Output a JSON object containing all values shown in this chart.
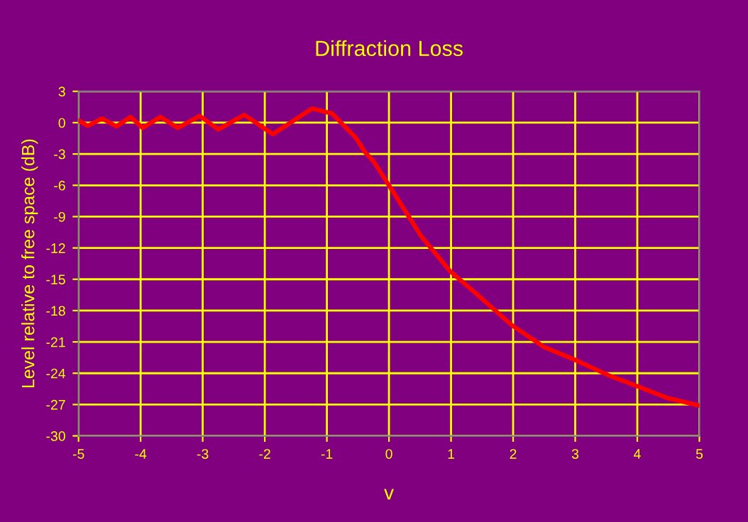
{
  "chart_data": {
    "type": "line",
    "title": "Diffraction Loss",
    "xlabel": "v",
    "ylabel": "Level relative to free space (dB)",
    "series": [
      {
        "color": "#ff0000",
        "x": [
          -5,
          -4.85,
          -4.62,
          -4.39,
          -4.16,
          -3.97,
          -3.68,
          -3.4,
          -3.05,
          -2.75,
          -2.33,
          -1.87,
          -1.24,
          -1,
          -0.92,
          -0.69,
          -0.54,
          -0.39,
          -0.25,
          0,
          0.51,
          0.98,
          1.43,
          1.98,
          2.5,
          2.99,
          3.58,
          3.98,
          4.5,
          5
        ],
        "values": [
          0.2,
          -0.3,
          0.4,
          -0.35,
          0.55,
          -0.5,
          0.55,
          -0.5,
          0.65,
          -0.65,
          0.75,
          -1.1,
          1.35,
          1.0,
          0.9,
          -0.5,
          -1.4,
          -2.8,
          -3.7,
          -6.0,
          -10.8,
          -14.2,
          -16.5,
          -19.4,
          -21.5,
          -22.7,
          -24.3,
          -25.2,
          -26.4,
          -27.1
        ]
      }
    ],
    "xlim": [
      -5,
      5
    ],
    "xticks": [
      -5,
      -4,
      -3,
      -2,
      -1,
      0,
      1,
      2,
      3,
      4,
      5
    ],
    "ylim": [
      -30,
      3
    ],
    "yticks": [
      -30,
      -27,
      -24,
      -21,
      -18,
      -15,
      -12,
      -9,
      -6,
      -3,
      0,
      3
    ],
    "grid": true,
    "legend": false,
    "marker": "none",
    "line_style": "solid"
  }
}
